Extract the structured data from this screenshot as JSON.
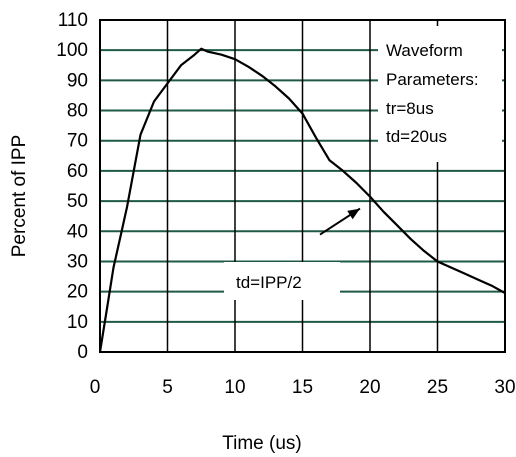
{
  "chart_data": {
    "type": "line",
    "xlabel": "Time (us)",
    "ylabel": "Percent of IPP",
    "xlim": [
      0,
      30
    ],
    "ylim": [
      0,
      110
    ],
    "x_ticks": [
      0,
      5,
      10,
      15,
      20,
      25,
      30
    ],
    "y_ticks": [
      0,
      10,
      20,
      30,
      40,
      50,
      60,
      70,
      80,
      90,
      100,
      110
    ],
    "grid": "horizontal",
    "colors": {
      "grid": "#1f5a45",
      "axis": "#000000",
      "line": "#000000",
      "background": "#ffffff"
    },
    "series": [
      {
        "x": [
          0,
          0.5,
          1,
          1.5,
          2,
          3,
          4,
          5,
          6,
          7,
          7.5,
          8,
          9,
          10,
          11,
          12,
          13,
          14,
          15,
          16,
          17,
          18,
          19,
          20,
          21,
          22,
          23,
          24,
          25,
          26,
          27,
          28,
          29,
          30
        ],
        "y": [
          0,
          14,
          28,
          38,
          48,
          72,
          83,
          89,
          95,
          98.5,
          100.5,
          99.5,
          98.5,
          97,
          94.5,
          91.5,
          88,
          84,
          79,
          71,
          63.5,
          60,
          56,
          51.5,
          46.5,
          42,
          37.5,
          33.5,
          30,
          28,
          26,
          24,
          22,
          19.5
        ]
      }
    ],
    "annotations": {
      "params_lines": [
        "Waveform",
        "Parameters:",
        "tr=8us",
        "td=20us"
      ],
      "td_label": "td=IPP/2",
      "arrow_target": {
        "x": 20,
        "y": 51.5
      }
    }
  }
}
